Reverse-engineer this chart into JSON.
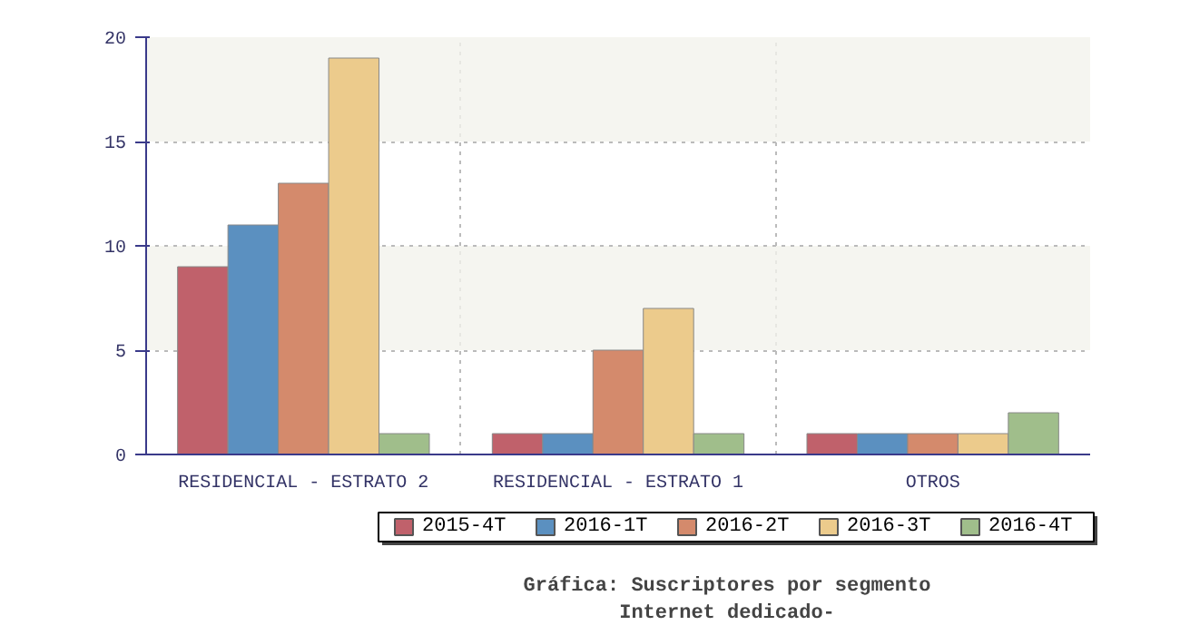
{
  "chart_data": {
    "type": "bar",
    "title": "Gráfica: Suscriptores por segmento",
    "subtitle": "Internet dedicado-",
    "categories": [
      "RESIDENCIAL - ESTRATO 2",
      "RESIDENCIAL - ESTRATO 1",
      "OTROS"
    ],
    "series": [
      {
        "name": "2015-4T",
        "color": "#c0616b",
        "values": [
          9,
          1,
          1
        ]
      },
      {
        "name": "2016-1T",
        "color": "#5b90c0",
        "values": [
          11,
          1,
          1
        ]
      },
      {
        "name": "2016-2T",
        "color": "#d48a6c",
        "values": [
          13,
          5,
          1
        ]
      },
      {
        "name": "2016-3T",
        "color": "#eccb8c",
        "values": [
          19,
          7,
          1
        ]
      },
      {
        "name": "2016-4T",
        "color": "#a0be8b",
        "values": [
          1,
          1,
          2
        ]
      }
    ],
    "ylim": [
      0,
      20
    ],
    "yticks": [
      0,
      5,
      10,
      15,
      20
    ],
    "grid": true,
    "legend": "bottom"
  }
}
